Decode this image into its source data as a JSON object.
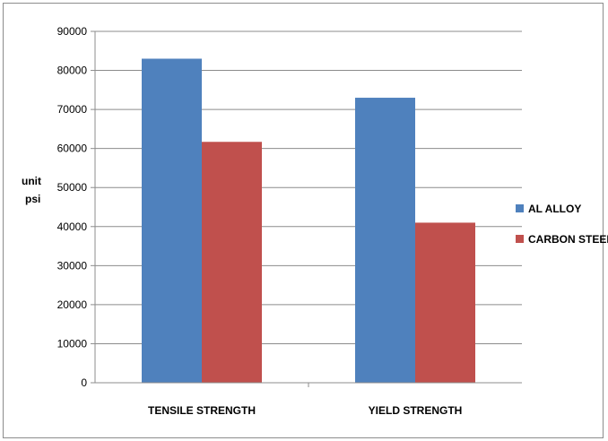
{
  "chart_data": {
    "type": "bar",
    "title": "",
    "ylabel": "unit psi",
    "ylabel_lines": [
      "unit",
      "psi"
    ],
    "xlabel": "",
    "categories": [
      "TENSILE STRENGTH",
      "YIELD STRENGTH"
    ],
    "series": [
      {
        "name": "AL ALLOY",
        "values": [
          83000,
          73000
        ],
        "color": "#4f81bd"
      },
      {
        "name": "CARBON STEEL",
        "values": [
          61700,
          41000
        ],
        "color": "#c0504d"
      }
    ],
    "ylim": [
      0,
      90000
    ],
    "yticks": [
      0,
      10000,
      20000,
      30000,
      40000,
      50000,
      60000,
      70000,
      80000,
      90000
    ],
    "grid": true,
    "legend_position": "right"
  }
}
